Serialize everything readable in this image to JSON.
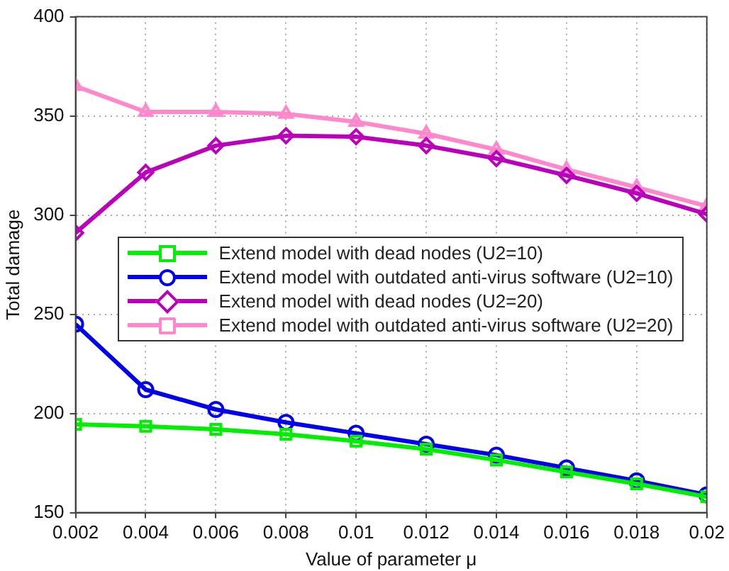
{
  "chart_data": {
    "type": "line",
    "xlabel": "Value of parameter μ",
    "ylabel": "Total damage",
    "x": [
      0.002,
      0.004,
      0.006,
      0.008,
      0.01,
      0.012,
      0.014,
      0.016,
      0.018,
      0.02
    ],
    "xlim": [
      0.002,
      0.02
    ],
    "xticks": [
      0.002,
      0.004,
      0.006,
      0.008,
      0.01,
      0.012,
      0.014,
      0.016,
      0.018,
      0.02
    ],
    "ylim": [
      150,
      400
    ],
    "yticks": [
      150,
      200,
      250,
      300,
      350,
      400
    ],
    "grid": true,
    "legend": "bottom left",
    "line_style": "solid",
    "series": [
      {
        "name": "Extend model with dead nodes (U2=10)",
        "color": "#00ee00",
        "marker": "square",
        "values": [
          194.5,
          193.5,
          192,
          189.5,
          186,
          182,
          176.5,
          170.5,
          164.5,
          158
        ]
      },
      {
        "name": "Extend model with outdated anti-virus software (U2=10)",
        "color": "#0000ee",
        "marker": "circle",
        "values": [
          245,
          212,
          202,
          195.5,
          190,
          184.5,
          179,
          172.5,
          166,
          159
        ]
      },
      {
        "name": "Extend model with dead nodes (U2=20)",
        "color": "#bb00bb",
        "marker": "diamond",
        "values": [
          291,
          321.5,
          335,
          340,
          339.5,
          335,
          328.5,
          320,
          311,
          300.5
        ]
      },
      {
        "name": "Extend model with outdated anti-virus software (U2=20)",
        "color": "#ff88cc",
        "marker": "triangle",
        "values": [
          365,
          352,
          352,
          351,
          347,
          341,
          333,
          323,
          314,
          304.5
        ]
      }
    ]
  }
}
